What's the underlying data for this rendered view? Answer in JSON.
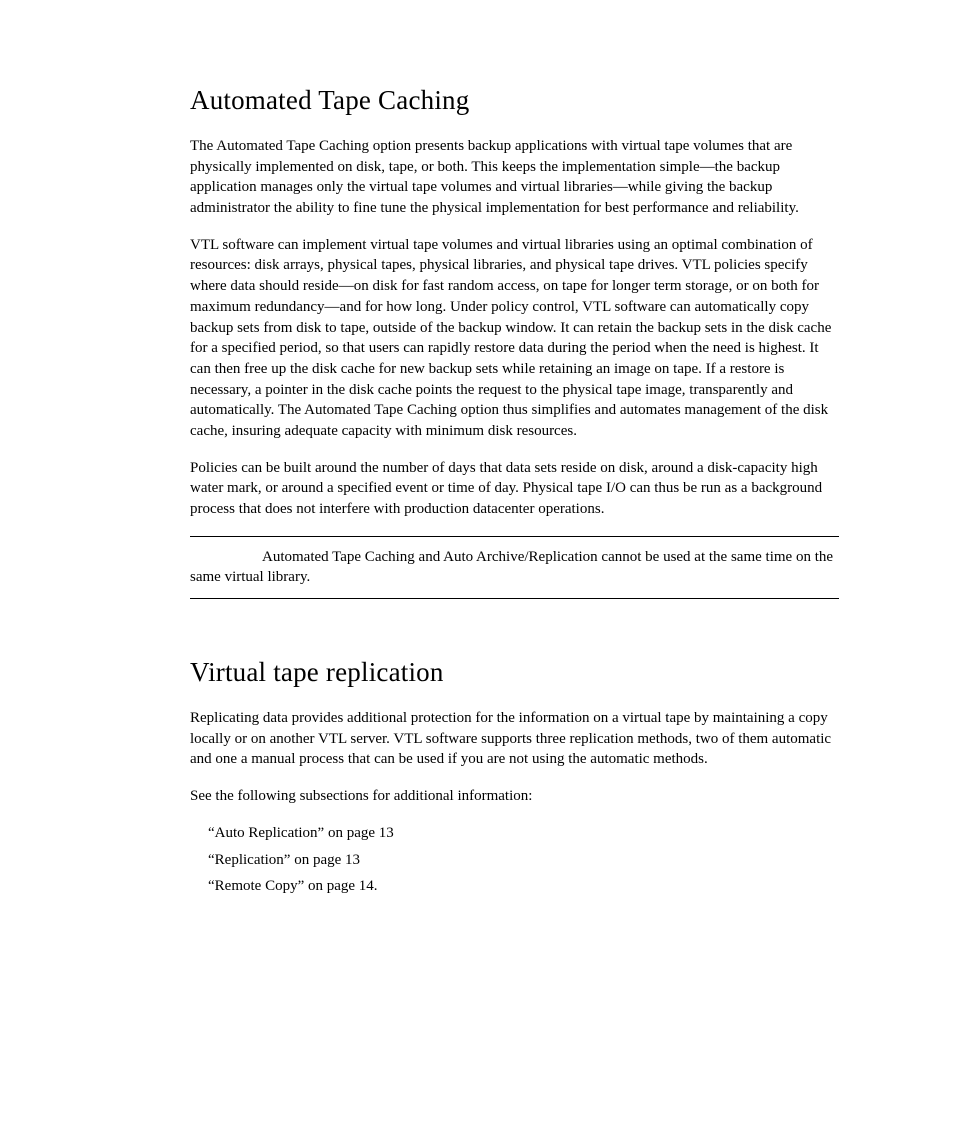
{
  "section1": {
    "heading": "Automated Tape Caching",
    "para1": "The Automated Tape Caching option presents backup applications with virtual tape volumes that are physically implemented on disk, tape, or both. This keeps the implementation simple—the backup application manages only the virtual tape volumes and virtual libraries—while giving the backup administrator the ability to fine tune the physical implementation for best performance and reliability.",
    "para2": "VTL software can implement virtual tape volumes and virtual libraries using an optimal combination of resources: disk arrays, physical tapes, physical libraries, and physical tape drives. VTL policies specify where data should reside—on disk for fast random access, on tape for longer term storage, or on both for maximum redundancy—and for how long. Under policy control, VTL software can automatically copy backup sets from disk to tape, outside of the backup window. It can retain the backup sets in the disk cache for a specified period, so that users can rapidly restore data during the period when the need is highest. It can then free up the disk cache for new backup sets while retaining an image on tape. If a restore is necessary, a pointer in the disk cache points the request to the physical tape image, transparently and automatically. The Automated Tape Caching option thus simplifies and automates management of the disk cache, insuring adequate capacity with minimum disk resources.",
    "para3": "Policies can be built around the number of days that data sets reside on disk, around a disk-capacity high water mark, or around a specified event or time of day. Physical tape I/O can thus be run as a background process that does not interfere with production datacenter operations.",
    "note": "Automated Tape Caching and Auto Archive/Replication cannot be used at the same time on the same virtual library."
  },
  "section2": {
    "heading": "Virtual tape replication",
    "para1": "Replicating data provides additional protection for the information on a virtual tape by maintaining a copy locally or on another VTL server. VTL software supports three replication methods, two of them automatic and one a manual process that can be used if you are not using the automatic methods.",
    "para2": "See the following subsections for additional information:",
    "links": {
      "l1": "“Auto Replication” on page 13",
      "l2": "“Replication” on page 13",
      "l3": "“Remote Copy” on page 14."
    }
  }
}
